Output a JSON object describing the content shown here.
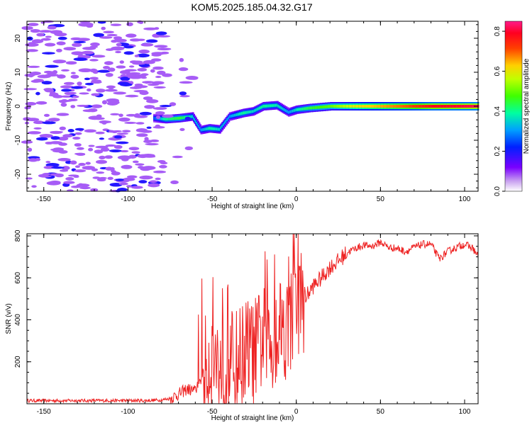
{
  "title": "KOM5.2025.185.04.32.G17",
  "chart_data": [
    {
      "type": "heatmap",
      "title": "KOM5.2025.185.04.32.G17",
      "xlabel": "Height of straight line (km)",
      "ylabel": "Frequency (Hz)",
      "xlim": [
        -160,
        108
      ],
      "ylim": [
        -25,
        25
      ],
      "xticks": [
        -150,
        -100,
        -50,
        0,
        50,
        100
      ],
      "yticks": [
        -20,
        -10,
        0,
        10,
        20
      ],
      "colorbar": {
        "label": "Normalized spectral amplitude",
        "range": [
          0.0,
          0.85
        ],
        "ticks": [
          0.0,
          0.2,
          0.4,
          0.6,
          0.8
        ]
      },
      "ridge": [
        {
          "x": -85,
          "y": -3.5,
          "v": 0.25
        },
        {
          "x": -78,
          "y": -3.8,
          "v": 0.4
        },
        {
          "x": -70,
          "y": -3.5,
          "v": 0.45
        },
        {
          "x": -62,
          "y": -3.0,
          "v": 0.35
        },
        {
          "x": -57,
          "y": -7.0,
          "v": 0.3
        },
        {
          "x": -52,
          "y": -6.5,
          "v": 0.4
        },
        {
          "x": -46,
          "y": -6.8,
          "v": 0.35
        },
        {
          "x": -40,
          "y": -3.0,
          "v": 0.3
        },
        {
          "x": -32,
          "y": -2.0,
          "v": 0.4
        },
        {
          "x": -26,
          "y": -1.5,
          "v": 0.35
        },
        {
          "x": -20,
          "y": 0.0,
          "v": 0.4
        },
        {
          "x": -12,
          "y": 0.3,
          "v": 0.38
        },
        {
          "x": -5,
          "y": -1.8,
          "v": 0.3
        },
        {
          "x": 0,
          "y": -1.0,
          "v": 0.38
        },
        {
          "x": 8,
          "y": -0.5,
          "v": 0.45
        },
        {
          "x": 20,
          "y": 0.0,
          "v": 0.5
        },
        {
          "x": 35,
          "y": 0.0,
          "v": 0.6
        },
        {
          "x": 50,
          "y": 0.0,
          "v": 0.65
        },
        {
          "x": 65,
          "y": 0.0,
          "v": 0.7
        },
        {
          "x": 80,
          "y": 0.0,
          "v": 0.78
        },
        {
          "x": 95,
          "y": 0.0,
          "v": 0.8
        },
        {
          "x": 108,
          "y": 0.0,
          "v": 0.82
        }
      ]
    },
    {
      "type": "line",
      "xlabel": "Height of straight line (km)",
      "ylabel": "SNR (v/v)",
      "xlim": [
        -160,
        108
      ],
      "ylim": [
        0,
        810
      ],
      "xticks": [
        -150,
        -100,
        -50,
        0,
        50,
        100
      ],
      "yticks": [
        200,
        400,
        600,
        800
      ],
      "line_color": "#ee2222",
      "series": [
        {
          "x": [
            -160,
            -140,
            -120,
            -100,
            -90,
            -80,
            -75,
            -70,
            -65,
            -60,
            -55,
            -50,
            -45,
            -40,
            -35,
            -30,
            -25,
            -20,
            -15,
            -10,
            -5,
            0,
            5,
            10,
            15,
            20,
            25,
            30,
            35,
            40,
            45,
            50,
            55,
            60,
            65,
            70,
            75,
            80,
            85,
            90,
            95,
            100,
            105,
            108
          ],
          "y": [
            15,
            15,
            15,
            15,
            15,
            18,
            25,
            45,
            70,
            60,
            150,
            230,
            170,
            190,
            200,
            260,
            240,
            320,
            280,
            390,
            360,
            470,
            500,
            560,
            600,
            650,
            680,
            720,
            740,
            755,
            750,
            770,
            745,
            740,
            725,
            745,
            760,
            760,
            690,
            725,
            745,
            760,
            740,
            700
          ]
        }
      ]
    }
  ]
}
